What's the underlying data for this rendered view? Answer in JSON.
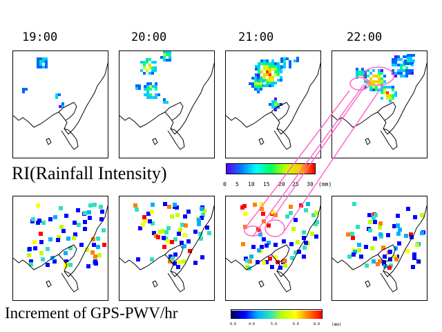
{
  "times": [
    "19:00",
    "20:00",
    "21:00",
    "22:00"
  ],
  "ri_label": "RI(Rainfall  Intensity)",
  "pwv_label": "Increment of GPS-PWV/hr",
  "ri_colorbar": {
    "ticks": [
      "0",
      "5",
      "10",
      "15",
      "20",
      "25",
      "30"
    ],
    "unit": "(mm)",
    "colors": [
      "#5a00ff",
      "#0080ff",
      "#00ffff",
      "#00ff60",
      "#c0ff00",
      "#ffcc00",
      "#ff0000"
    ]
  },
  "pwv_colorbar": {
    "ticks": [
      "0.0",
      "4.0",
      "5.0",
      "6.0",
      "8.0"
    ],
    "unit": "(mm)",
    "colors": [
      "#000060",
      "#0000ff",
      "#00b0ff",
      "#30e0c0",
      "#c0ff00",
      "#ffff00",
      "#ff8000",
      "#ff0000"
    ]
  },
  "panel_names": [
    "19:00",
    "20:00",
    "21:00",
    "22:00"
  ]
}
